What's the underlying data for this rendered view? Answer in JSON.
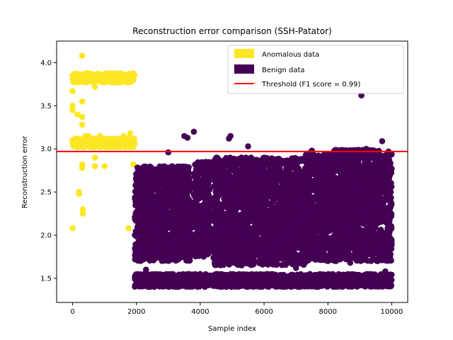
{
  "chart_data": {
    "type": "scatter",
    "title": "Reconstruction error comparison (SSH-Patator)",
    "xlabel": "Sample index",
    "ylabel": "Reconstruction error",
    "xlim": [
      -500,
      10500
    ],
    "ylim": [
      1.22,
      4.25
    ],
    "xticks": [
      0,
      2000,
      4000,
      6000,
      8000,
      10000
    ],
    "yticks": [
      1.5,
      2.0,
      2.5,
      3.0,
      3.5,
      4.0
    ],
    "ytick_labels": [
      "1.5",
      "2.0",
      "2.5",
      "3.0",
      "3.5",
      "4.0"
    ],
    "grid": false,
    "legend_position": "top-right",
    "threshold": {
      "y": 2.97,
      "label": "Threshold (F1 score = 0.99)",
      "color": "#ff0000"
    },
    "series": [
      {
        "name": "Anomalous data",
        "color": "#fde725",
        "points": [
          [
            0,
            2.08
          ],
          [
            0,
            3.67
          ],
          [
            0,
            3.85
          ],
          [
            0,
            3.1
          ],
          [
            0,
            3.45
          ],
          [
            0,
            3.5
          ],
          [
            0,
            3.07
          ],
          [
            100,
            3.85
          ],
          [
            100,
            3.8
          ],
          [
            100,
            3.05
          ],
          [
            100,
            3.1
          ],
          [
            150,
            3.02
          ],
          [
            150,
            3.4
          ],
          [
            200,
            3.82
          ],
          [
            200,
            3.05
          ],
          [
            200,
            2.48
          ],
          [
            200,
            2.5
          ],
          [
            250,
            3.86
          ],
          [
            250,
            3.08
          ],
          [
            300,
            4.08
          ],
          [
            300,
            3.84
          ],
          [
            300,
            3.55
          ],
          [
            300,
            3.37
          ],
          [
            300,
            3.28
          ],
          [
            300,
            3.1
          ],
          [
            300,
            2.82
          ],
          [
            300,
            2.78
          ],
          [
            320,
            2.3
          ],
          [
            320,
            2.25
          ],
          [
            350,
            3.85
          ],
          [
            350,
            3.05
          ],
          [
            400,
            3.83
          ],
          [
            400,
            3.07
          ],
          [
            400,
            3.15
          ],
          [
            450,
            3.8
          ],
          [
            450,
            3.05
          ],
          [
            500,
            3.86
          ],
          [
            500,
            3.15
          ],
          [
            500,
            3.07
          ],
          [
            550,
            3.82
          ],
          [
            550,
            3.09
          ],
          [
            600,
            3.85
          ],
          [
            600,
            3.05
          ],
          [
            650,
            3.83
          ],
          [
            650,
            3.1
          ],
          [
            700,
            3.8
          ],
          [
            700,
            3.04
          ],
          [
            700,
            3.72
          ],
          [
            700,
            2.9
          ],
          [
            700,
            2.8
          ],
          [
            750,
            3.85
          ],
          [
            750,
            3.06
          ],
          [
            800,
            3.82
          ],
          [
            800,
            3.08
          ],
          [
            850,
            3.86
          ],
          [
            850,
            3.15
          ],
          [
            900,
            3.83
          ],
          [
            900,
            3.07
          ],
          [
            950,
            3.8
          ],
          [
            950,
            3.05
          ],
          [
            1000,
            3.85
          ],
          [
            1000,
            3.08
          ],
          [
            1000,
            2.8
          ],
          [
            1050,
            3.84
          ],
          [
            1050,
            3.06
          ],
          [
            1100,
            3.82
          ],
          [
            1100,
            3.1
          ],
          [
            1150,
            3.86
          ],
          [
            1150,
            3.05
          ],
          [
            1200,
            3.83
          ],
          [
            1200,
            3.08
          ],
          [
            1250,
            3.8
          ],
          [
            1250,
            3.05
          ],
          [
            1300,
            3.85
          ],
          [
            1300,
            3.07
          ],
          [
            1350,
            3.82
          ],
          [
            1350,
            3.05
          ],
          [
            1400,
            3.86
          ],
          [
            1400,
            3.1
          ],
          [
            1450,
            3.83
          ],
          [
            1450,
            3.05
          ],
          [
            1500,
            3.85
          ],
          [
            1500,
            3.08
          ],
          [
            1550,
            3.82
          ],
          [
            1550,
            3.05
          ],
          [
            1600,
            3.8
          ],
          [
            1600,
            3.15
          ],
          [
            1650,
            3.84
          ],
          [
            1650,
            3.06
          ],
          [
            1700,
            3.86
          ],
          [
            1700,
            3.05
          ],
          [
            1750,
            3.82
          ],
          [
            1750,
            3.08
          ],
          [
            1800,
            3.85
          ],
          [
            1800,
            3.05
          ],
          [
            1850,
            3.83
          ],
          [
            1850,
            3.1
          ],
          [
            1900,
            3.8
          ],
          [
            1900,
            3.05
          ],
          [
            1900,
            2.82
          ],
          [
            1750,
            2.08
          ],
          [
            1800,
            3.18
          ]
        ],
        "bands": [
          {
            "x": [
              0,
              1950
            ],
            "y": [
              3.02,
              3.12
            ],
            "n": 300
          },
          {
            "x": [
              0,
              1950
            ],
            "y": [
              3.77,
              3.88
            ],
            "n": 300
          }
        ]
      },
      {
        "name": "Benign data",
        "color": "#440154",
        "points": [
          [
            3000,
            2.96
          ],
          [
            3500,
            3.15
          ],
          [
            3600,
            3.13
          ],
          [
            3800,
            3.2
          ],
          [
            4900,
            3.12
          ],
          [
            4950,
            3.15
          ],
          [
            5500,
            3.03
          ],
          [
            9050,
            3.62
          ],
          [
            9200,
            3.0
          ],
          [
            9700,
            3.09
          ],
          [
            9900,
            2.97
          ],
          [
            7500,
            2.98
          ],
          [
            7400,
            2.95
          ],
          [
            8300,
            2.97
          ],
          [
            8600,
            2.97
          ],
          [
            8900,
            2.97
          ],
          [
            4200,
            2.6
          ],
          [
            2200,
            2.15
          ],
          [
            3100,
            1.95
          ],
          [
            6500,
            1.75
          ],
          [
            8000,
            1.7
          ],
          [
            9600,
            1.8
          ],
          [
            4000,
            1.55
          ],
          [
            2300,
            1.6
          ],
          [
            5300,
            1.65
          ],
          [
            6100,
            1.55
          ],
          [
            7000,
            1.62
          ],
          [
            8700,
            1.68
          ],
          [
            9800,
            1.58
          ],
          [
            2100,
            1.53
          ]
        ],
        "bands": [
          {
            "x": [
              1950,
              3700
            ],
            "y": [
              1.7,
              2.8
            ],
            "n": 1200
          },
          {
            "x": [
              3800,
              4300
            ],
            "y": [
              1.75,
              2.85
            ],
            "n": 300
          },
          {
            "x": [
              4100,
              4700
            ],
            "y": [
              2.7,
              2.85
            ],
            "n": 120
          },
          {
            "x": [
              4400,
              7400
            ],
            "y": [
              1.65,
              2.9
            ],
            "n": 1800
          },
          {
            "x": [
              7300,
              10000
            ],
            "y": [
              1.7,
              2.95
            ],
            "n": 1700
          },
          {
            "x": [
              8200,
              9600
            ],
            "y": [
              2.95,
              2.99
            ],
            "n": 90
          },
          {
            "x": [
              1950,
              10000
            ],
            "y": [
              1.4,
              1.55
            ],
            "n": 1600
          },
          {
            "x": [
              2000,
              10000
            ],
            "y": [
              1.85,
              1.95
            ],
            "n": 500
          },
          {
            "x": [
              2000,
              10000
            ],
            "y": [
              2.15,
              2.25
            ],
            "n": 500
          }
        ]
      }
    ]
  }
}
